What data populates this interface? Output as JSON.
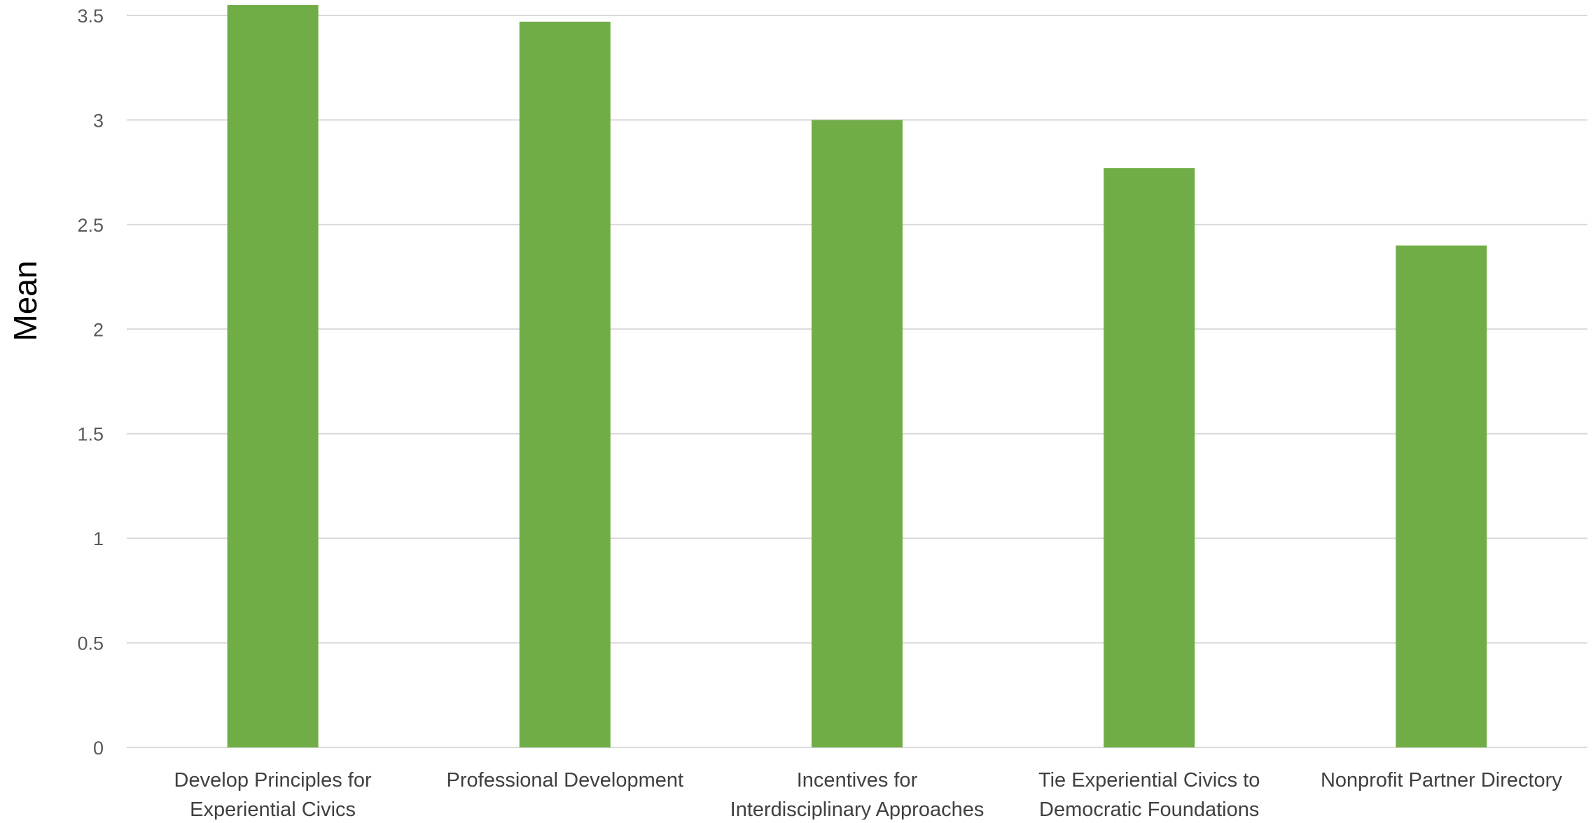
{
  "chart_data": {
    "type": "bar",
    "categories": [
      [
        "Develop Principles for",
        "Experiential Civics"
      ],
      [
        "Professional Development"
      ],
      [
        "Incentives for",
        "Interdisciplinary Approaches"
      ],
      [
        "Tie Experiential Civics to",
        "Democratic Foundations"
      ],
      [
        "Nonprofit Partner Directory"
      ]
    ],
    "values": [
      3.55,
      3.47,
      3.0,
      2.77,
      2.4
    ],
    "ylabel": "Mean",
    "ylim": [
      0,
      3.5
    ],
    "yticks": [
      "0",
      "0.5",
      "1",
      "1.5",
      "2",
      "2.5",
      "3",
      "3.5"
    ],
    "ytick_values": [
      0,
      0.5,
      1,
      1.5,
      2,
      2.5,
      3,
      3.5
    ],
    "grid": true,
    "bar_color": "#70AD47",
    "grid_color": "#D9D9D9"
  }
}
